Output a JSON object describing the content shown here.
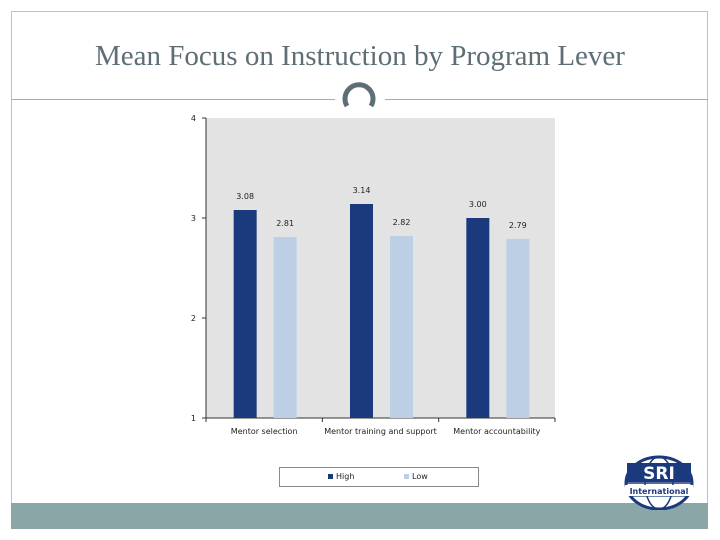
{
  "title": "Mean Focus on Instruction by Program Lever",
  "colors": {
    "high": "#1b3a7e",
    "low": "#bccfe4",
    "plot_bg": "#e3e3e3",
    "band": "#8aa6a6",
    "title": "#5e6e76"
  },
  "logo": {
    "text": "SRI",
    "subtext": "International",
    "icon": "globe-icon"
  },
  "chart_data": {
    "type": "bar",
    "title": "",
    "xlabel": "",
    "ylabel": "",
    "ylim": [
      1,
      4
    ],
    "yticks": [
      1,
      2,
      3,
      4
    ],
    "grid": false,
    "legend_position": "bottom",
    "categories": [
      "Mentor selection",
      "Mentor training and support",
      "Mentor accountability"
    ],
    "series": [
      {
        "name": "High",
        "color": "#1b3a7e",
        "values": [
          3.08,
          3.14,
          3.0
        ],
        "labels": [
          "3.08",
          "3.14",
          "3.00"
        ]
      },
      {
        "name": "Low",
        "color": "#bccfe4",
        "values": [
          2.81,
          2.82,
          2.79
        ],
        "labels": [
          "2.81",
          "2.82",
          "2.79"
        ]
      }
    ]
  }
}
